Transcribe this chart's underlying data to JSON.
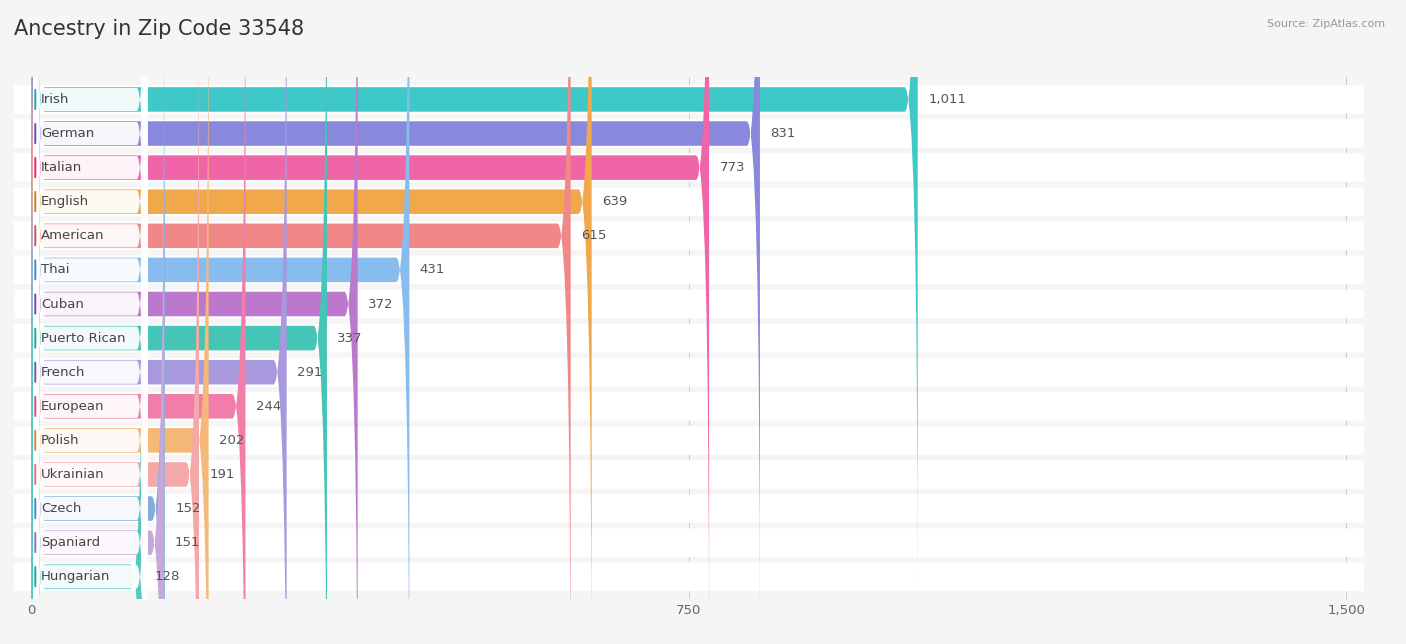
{
  "title": "Ancestry in Zip Code 33548",
  "source": "Source: ZipAtlas.com",
  "categories": [
    "Irish",
    "German",
    "Italian",
    "English",
    "American",
    "Thai",
    "Cuban",
    "Puerto Rican",
    "French",
    "European",
    "Polish",
    "Ukrainian",
    "Czech",
    "Spaniard",
    "Hungarian"
  ],
  "values": [
    1011,
    831,
    773,
    639,
    615,
    431,
    372,
    337,
    291,
    244,
    202,
    191,
    152,
    151,
    128
  ],
  "bar_colors": [
    "#3ec8c8",
    "#8888dd",
    "#f065a8",
    "#f0a84a",
    "#f08888",
    "#88bbee",
    "#bb78cc",
    "#45c5b5",
    "#a898dd",
    "#f07daa",
    "#f4b878",
    "#f4a8a8",
    "#88aadd",
    "#c8a8d8",
    "#55c5c0"
  ],
  "circle_colors": [
    "#1aa8a8",
    "#5555bb",
    "#e02880",
    "#d08020",
    "#d05050",
    "#4488cc",
    "#8840a8",
    "#20a898",
    "#7055aa",
    "#e04880",
    "#d49030",
    "#e07878",
    "#4488cc",
    "#9870b8",
    "#20a8a0"
  ],
  "background_color": "#f5f5f5",
  "xlim_max": 1500,
  "xticks": [
    0,
    750,
    1500
  ],
  "label_fontsize": 9.5,
  "value_fontsize": 9.5,
  "title_fontsize": 15
}
